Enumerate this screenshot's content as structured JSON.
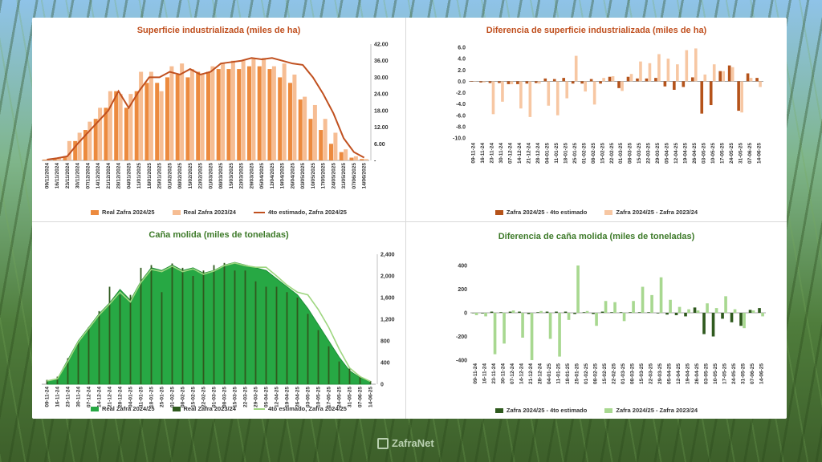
{
  "brand": {
    "name": "ZafraNet"
  },
  "chart_data": [
    {
      "type": "bar",
      "title": "Superficie industrializada (miles de ha)",
      "categories": [
        "09/11/2024",
        "16/11/2024",
        "23/11/2024",
        "30/11/2024",
        "07/12/2024",
        "14/12/2024",
        "21/12/2024",
        "28/12/2024",
        "04/01/2025",
        "11/01/2025",
        "18/01/2025",
        "25/01/2025",
        "01/02/2025",
        "08/02/2025",
        "15/02/2025",
        "22/02/2025",
        "01/03/2025",
        "08/03/2025",
        "15/03/2025",
        "22/03/2025",
        "29/03/2025",
        "05/04/2025",
        "12/04/2025",
        "19/04/2025",
        "26/04/2025",
        "03/05/2025",
        "10/05/2025",
        "17/05/2025",
        "24/05/2025",
        "31/05/2025",
        "07/06/2025",
        "14/06/2025"
      ],
      "yticks": [
        "42.00",
        "36.00",
        "30.00",
        "24.00",
        "18.00",
        "12.00",
        "6.00",
        "-"
      ],
      "ylim": [
        0,
        42
      ],
      "series": [
        {
          "name": "Real Zafra 2024/25",
          "kind": "bar",
          "color": "#ec8a3e",
          "values": [
            0.3,
            0.8,
            1.5,
            7,
            11,
            15,
            19,
            25,
            19,
            25,
            28,
            28,
            30,
            31,
            30,
            32,
            32,
            33,
            33,
            33,
            34,
            34,
            33,
            30,
            28,
            22,
            15,
            11,
            6,
            3,
            1,
            0.5
          ]
        },
        {
          "name": "Real Zafra 2023/24",
          "kind": "bar",
          "color": "#f6bd93",
          "values": [
            0.5,
            1,
            7,
            10,
            14,
            19,
            25,
            24,
            24,
            32,
            32,
            25,
            34,
            35,
            33,
            31,
            34,
            35,
            36,
            36,
            37,
            37,
            34,
            35,
            31,
            23,
            20,
            15,
            10,
            4,
            1.5,
            0.5
          ]
        },
        {
          "name": "4to estimado, Zafra 2024/25",
          "kind": "line",
          "color": "#c0501f",
          "values": [
            0.3,
            0.8,
            1.5,
            6,
            10,
            14,
            18,
            25,
            19,
            25,
            30,
            30,
            32,
            31,
            33,
            31,
            32,
            35,
            35.5,
            36,
            37,
            36.5,
            37,
            36,
            35,
            34.5,
            30,
            24,
            17,
            8,
            3,
            1
          ]
        }
      ]
    },
    {
      "type": "bar",
      "title": "Diferencia de superficie industrializada (miles de ha)",
      "categories": [
        "09-11-24",
        "16-11-24",
        "23-11-24",
        "30-11-24",
        "07-12-24",
        "14-12-24",
        "21-12-24",
        "28-12-24",
        "04-01-25",
        "11-01-25",
        "18-01-25",
        "25-01-25",
        "01-02-25",
        "08-02-25",
        "15-02-25",
        "22-02-25",
        "01-03-25",
        "08-03-25",
        "15-03-25",
        "22-03-25",
        "29-03-25",
        "05-04-25",
        "12-04-25",
        "19-04-25",
        "26-04-25",
        "03-05-25",
        "10-05-25",
        "17-05-25",
        "24-05-25",
        "31-05-25",
        "07-06-25",
        "14-06-25"
      ],
      "yticks": [
        "6.0",
        "4.0",
        "2.0",
        "0.0",
        "-2.0",
        "-4.0",
        "-6.0",
        "-8.0",
        "-10.0"
      ],
      "ylim": [
        -10,
        6
      ],
      "series": [
        {
          "name": "Zafra 2024/25 - 4to estimado",
          "color": "#b5531a",
          "values": [
            0,
            -0.2,
            -0.3,
            -0.3,
            -0.5,
            -0.5,
            -0.4,
            -0.3,
            0.5,
            0.4,
            0.6,
            -0.4,
            -0.4,
            0.4,
            -0.4,
            0.8,
            -1.2,
            0.8,
            0.5,
            0.5,
            0.6,
            -0.9,
            -1.5,
            -1.0,
            0.7,
            -5.7,
            -4.2,
            1.8,
            2.8,
            -5.2,
            1.4,
            0.6
          ]
        },
        {
          "name": "Zafra 2024/25 - Zafra 2023/24",
          "color": "#f7c7a3",
          "values": [
            0,
            -0.2,
            -5.8,
            -3.6,
            -0.5,
            -4.8,
            -6.3,
            -0.4,
            -4.3,
            -6.0,
            -3.0,
            4.5,
            -1.8,
            -4.1,
            0.6,
            0.9,
            -1.7,
            1.3,
            3.5,
            3.2,
            4.8,
            4.0,
            3.0,
            5.5,
            5.8,
            1.2,
            3.0,
            1.8,
            2.5,
            -5.5,
            0.6,
            -1.0
          ]
        }
      ]
    },
    {
      "type": "area",
      "title": "Caña molida (miles de toneladas)",
      "categories": [
        "09-11-24",
        "16-11-24",
        "23-11-24",
        "30-11-24",
        "07-12-24",
        "14-12-24",
        "21-12-24",
        "28-12-24",
        "04-01-25",
        "11-01-25",
        "18-01-25",
        "25-01-25",
        "01-02-25",
        "08-02-25",
        "15-02-25",
        "22-02-25",
        "01-03-25",
        "08-03-25",
        "15-03-25",
        "22-03-25",
        "29-03-25",
        "05-04-25",
        "12-04-25",
        "19-04-25",
        "26-04-25",
        "03-05-25",
        "10-05-25",
        "17-05-25",
        "24-05-25",
        "31-05-25",
        "07-06-25",
        "14-06-25"
      ],
      "yticks": [
        "2,400",
        "2,000",
        "1,600",
        "1,200",
        "800",
        "400",
        "0"
      ],
      "ylim": [
        0,
        2400
      ],
      "series": [
        {
          "name": "Real Zafra 2024/25",
          "kind": "area",
          "color": "#27a844",
          "values": [
            60,
            100,
            450,
            800,
            1050,
            1300,
            1500,
            1750,
            1550,
            1900,
            2150,
            2100,
            2200,
            2100,
            2150,
            2050,
            2100,
            2200,
            2250,
            2200,
            2150,
            2100,
            1950,
            1800,
            1650,
            1400,
            1100,
            800,
            500,
            250,
            120,
            50
          ]
        },
        {
          "name": "Real Zafra 2023/24",
          "kind": "bar",
          "color": "#2f5a1e",
          "values": [
            80,
            140,
            480,
            780,
            1050,
            1350,
            1800,
            1650,
            1650,
            2150,
            2200,
            1700,
            2230,
            2150,
            2000,
            2100,
            2200,
            2240,
            2100,
            2100,
            1900,
            1800,
            1800,
            1700,
            1600,
            1300,
            1000,
            700,
            420,
            300,
            150,
            60
          ]
        },
        {
          "name": "4to estimado, Zafra 2024/25",
          "kind": "line",
          "color": "#9ed680",
          "values": [
            60,
            100,
            420,
            780,
            1030,
            1280,
            1480,
            1700,
            1520,
            1880,
            2120,
            2080,
            2180,
            2080,
            2130,
            2030,
            2090,
            2190,
            2240,
            2190,
            2160,
            2160,
            2000,
            1830,
            1700,
            1650,
            1380,
            1050,
            650,
            300,
            140,
            50
          ]
        }
      ]
    },
    {
      "type": "bar",
      "title": "Diferencia de caña molida (miles de toneladas)",
      "categories": [
        "09-11-24",
        "16-11-24",
        "23-11-24",
        "30-11-24",
        "07-12-24",
        "14-12-24",
        "21-12-24",
        "28-12-24",
        "04-01-25",
        "11-01-25",
        "18-01-25",
        "25-01-25",
        "01-02-25",
        "08-02-25",
        "15-02-25",
        "22-02-25",
        "01-03-25",
        "08-03-25",
        "15-03-25",
        "22-03-25",
        "29-03-25",
        "05-04-25",
        "12-04-25",
        "19-04-25",
        "26-04-25",
        "03-05-25",
        "10-05-25",
        "17-05-25",
        "24-05-25",
        "31-05-25",
        "07-06-25",
        "14-06-25"
      ],
      "yticks": [
        "400",
        "200",
        "0",
        "-200",
        "-400"
      ],
      "ylim": [
        -400,
        400
      ],
      "series": [
        {
          "name": "Zafra 2024/25 - 4to estimado",
          "color": "#2f5a1e",
          "values": [
            0,
            -5,
            10,
            5,
            10,
            10,
            -10,
            5,
            10,
            10,
            10,
            -10,
            5,
            -10,
            10,
            5,
            5,
            5,
            5,
            5,
            -5,
            -15,
            -20,
            -30,
            45,
            -180,
            -200,
            -50,
            -80,
            -110,
            25,
            40
          ]
        },
        {
          "name": "Zafra 2024/25 - Zafra 2023/24",
          "color": "#a8d890",
          "values": [
            -20,
            -30,
            -350,
            -260,
            20,
            -210,
            -400,
            15,
            -220,
            -370,
            -60,
            400,
            15,
            -110,
            100,
            90,
            -70,
            100,
            220,
            150,
            300,
            110,
            50,
            30,
            20,
            80,
            40,
            140,
            30,
            -130,
            20,
            -30
          ]
        }
      ]
    }
  ]
}
